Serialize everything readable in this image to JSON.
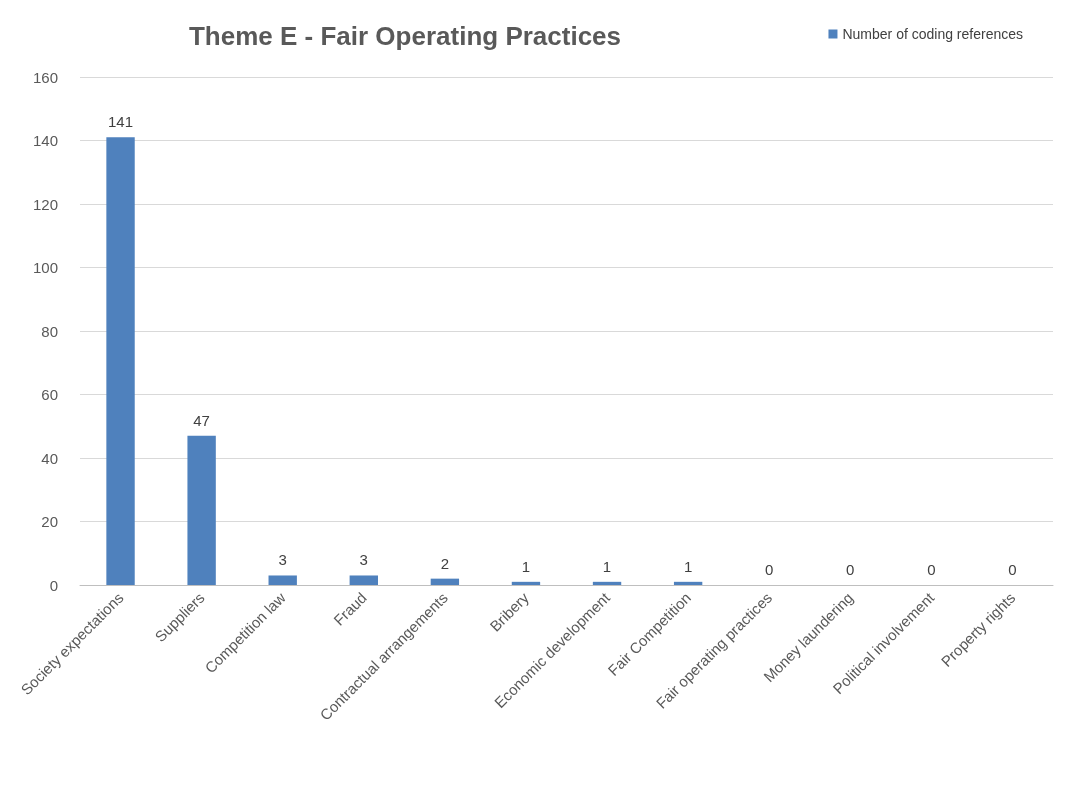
{
  "chart_data": {
    "type": "bar",
    "title": "Theme E - Fair Operating Practices",
    "categories": [
      "Society expectations",
      "Suppliers",
      "Competition law",
      "Fraud",
      "Contractual arrangements",
      "Bribery",
      "Economic development",
      "Fair Competition",
      "Fair operating practices",
      "Money laundering",
      "Political involvement",
      "Property rights"
    ],
    "series": [
      {
        "name": "Number of coding references",
        "color": "#4f81bd",
        "values": [
          141,
          47,
          3,
          3,
          2,
          1,
          1,
          1,
          0,
          0,
          0,
          0
        ]
      }
    ],
    "ylim": [
      0,
      160
    ],
    "yticks": [
      0,
      20,
      40,
      60,
      80,
      100,
      120,
      140,
      160
    ],
    "grid": "y",
    "legend": "top right",
    "data_labels": true
  }
}
